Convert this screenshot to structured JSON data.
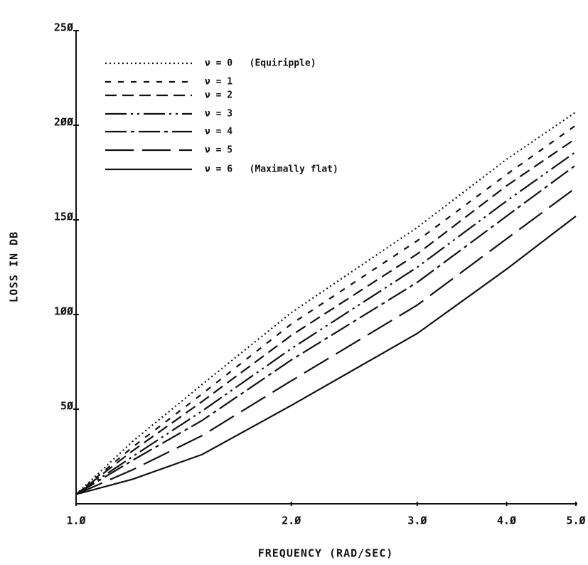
{
  "chart_data": {
    "type": "line",
    "x_label": "FREQUENCY (RAD/SEC)",
    "y_label": "LOSS IN DB",
    "xscale": "log",
    "x": [
      1.0,
      1.2,
      1.5,
      2.0,
      3.0,
      4.0,
      5.0
    ],
    "xlim": [
      1.0,
      5.0
    ],
    "xticks": [
      {
        "value": 1.0,
        "label": "1.Ø"
      },
      {
        "value": 2.0,
        "label": "2.Ø"
      },
      {
        "value": 3.0,
        "label": "3.Ø"
      },
      {
        "value": 4.0,
        "label": "4.Ø"
      },
      {
        "value": 5.0,
        "label": "5.Ø"
      }
    ],
    "ylim": [
      0,
      250
    ],
    "yticks": [
      {
        "value": 50,
        "label": "5Ø"
      },
      {
        "value": 100,
        "label": "1ØØ"
      },
      {
        "value": 150,
        "label": "15Ø"
      },
      {
        "value": 200,
        "label": "2ØØ"
      },
      {
        "value": 250,
        "label": "25Ø"
      }
    ],
    "series": [
      {
        "name": "ν = 0   (Equiripple)",
        "color": "#111111",
        "values": [
          5,
          33,
          63,
          101,
          146,
          182,
          207
        ]
      },
      {
        "name": "ν = 1",
        "color": "#111111",
        "values": [
          5,
          30,
          58,
          95,
          139,
          174,
          200
        ]
      },
      {
        "name": "ν = 2",
        "color": "#111111",
        "values": [
          5,
          28,
          54,
          89,
          132,
          168,
          193
        ]
      },
      {
        "name": "ν = 3",
        "color": "#111111",
        "values": [
          5,
          25,
          49,
          82,
          125,
          160,
          186
        ]
      },
      {
        "name": "ν = 4",
        "color": "#111111",
        "values": [
          5,
          23,
          44,
          76,
          117,
          152,
          179
        ]
      },
      {
        "name": "ν = 5",
        "color": "#111111",
        "values": [
          5,
          18,
          36,
          65,
          105,
          140,
          167
        ]
      },
      {
        "name": "ν = 6   (Maximally flat)",
        "color": "#111111",
        "values": [
          5,
          13,
          26,
          52,
          90,
          124,
          152
        ]
      }
    ]
  }
}
